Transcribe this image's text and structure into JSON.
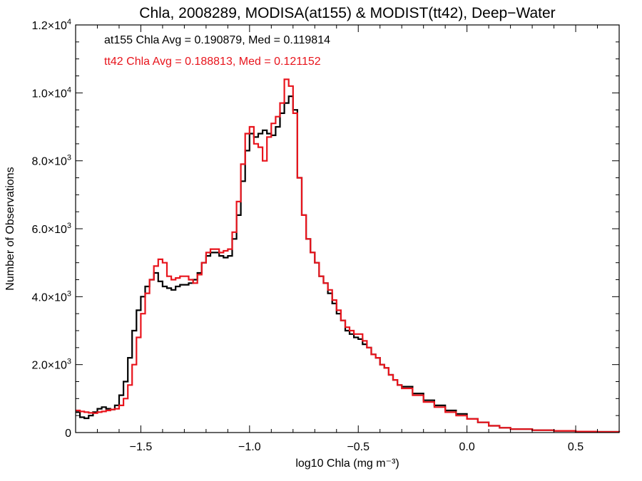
{
  "chart_data": {
    "type": "line",
    "title": "Chla, 2008289, MODISA(at155) & MODIST(tt42), Deep−Water",
    "xlabel": "log10 Chla (mg m⁻³)",
    "ylabel": "Number of Observations",
    "xlim": [
      -1.8,
      0.7
    ],
    "ylim": [
      0,
      12000
    ],
    "x_ticks": [
      {
        "value": -1.5,
        "label": "−1.5"
      },
      {
        "value": -1.0,
        "label": "−1.0"
      },
      {
        "value": -0.5,
        "label": "−0.5"
      },
      {
        "value": 0.0,
        "label": "0.0"
      },
      {
        "value": 0.5,
        "label": "0.5"
      }
    ],
    "y_ticks": [
      {
        "value": 0,
        "mantissa": "0",
        "exponent": ""
      },
      {
        "value": 2000,
        "mantissa": "2.0×10",
        "exponent": "3"
      },
      {
        "value": 4000,
        "mantissa": "4.0×10",
        "exponent": "3"
      },
      {
        "value": 6000,
        "mantissa": "6.0×10",
        "exponent": "3"
      },
      {
        "value": 8000,
        "mantissa": "8.0×10",
        "exponent": "3"
      },
      {
        "value": 10000,
        "mantissa": "1.0×10",
        "exponent": "4"
      },
      {
        "value": 12000,
        "mantissa": "1.2×10",
        "exponent": "4"
      }
    ],
    "annotations": [
      {
        "text": "at155 Chla Avg = 0.190879, Med = 0.119814",
        "color": "#000000"
      },
      {
        "text": "tt42 Chla Avg = 0.188813, Med = 0.121152",
        "color": "#e8141c"
      }
    ],
    "grid": false,
    "series": [
      {
        "color": "#000000",
        "x": [
          -1.8,
          -1.78,
          -1.76,
          -1.74,
          -1.72,
          -1.7,
          -1.68,
          -1.66,
          -1.64,
          -1.62,
          -1.6,
          -1.58,
          -1.56,
          -1.54,
          -1.52,
          -1.5,
          -1.48,
          -1.46,
          -1.44,
          -1.42,
          -1.4,
          -1.38,
          -1.36,
          -1.34,
          -1.32,
          -1.3,
          -1.28,
          -1.26,
          -1.24,
          -1.22,
          -1.2,
          -1.18,
          -1.16,
          -1.14,
          -1.12,
          -1.1,
          -1.08,
          -1.06,
          -1.04,
          -1.02,
          -1.0,
          -0.98,
          -0.96,
          -0.94,
          -0.92,
          -0.9,
          -0.88,
          -0.86,
          -0.84,
          -0.82,
          -0.8,
          -0.78,
          -0.76,
          -0.74,
          -0.72,
          -0.7,
          -0.68,
          -0.66,
          -0.64,
          -0.62,
          -0.6,
          -0.58,
          -0.56,
          -0.54,
          -0.52,
          -0.5,
          -0.48,
          -0.46,
          -0.44,
          -0.42,
          -0.4,
          -0.38,
          -0.36,
          -0.34,
          -0.32,
          -0.3,
          -0.25,
          -0.2,
          -0.15,
          -0.1,
          -0.05,
          0.0,
          0.05,
          0.1,
          0.15,
          0.2,
          0.3,
          0.4,
          0.5,
          0.6,
          0.7
        ],
        "y": [
          600,
          450,
          420,
          500,
          600,
          700,
          750,
          700,
          680,
          800,
          1100,
          1500,
          2200,
          3000,
          3600,
          4000,
          4300,
          4500,
          4700,
          4450,
          4300,
          4250,
          4200,
          4300,
          4350,
          4350,
          4400,
          4500,
          4700,
          5000,
          5200,
          5300,
          5300,
          5200,
          5150,
          5200,
          5700,
          6400,
          7400,
          8300,
          8800,
          8700,
          8800,
          8900,
          8800,
          8750,
          9000,
          9400,
          9700,
          9900,
          9500,
          7500,
          6400,
          5700,
          5300,
          5000,
          4600,
          4400,
          4100,
          3800,
          3500,
          3300,
          3000,
          2900,
          2800,
          2750,
          2600,
          2500,
          2300,
          2200,
          2000,
          1900,
          1700,
          1550,
          1400,
          1350,
          1150,
          950,
          800,
          650,
          550,
          400,
          300,
          200,
          140,
          100,
          70,
          50,
          30,
          20,
          10
        ]
      },
      {
        "color": "#e8141c",
        "x": [
          -1.8,
          -1.78,
          -1.76,
          -1.74,
          -1.72,
          -1.7,
          -1.68,
          -1.66,
          -1.64,
          -1.62,
          -1.6,
          -1.58,
          -1.56,
          -1.54,
          -1.52,
          -1.5,
          -1.48,
          -1.46,
          -1.44,
          -1.42,
          -1.4,
          -1.38,
          -1.36,
          -1.34,
          -1.32,
          -1.3,
          -1.28,
          -1.26,
          -1.24,
          -1.22,
          -1.2,
          -1.18,
          -1.16,
          -1.14,
          -1.12,
          -1.1,
          -1.08,
          -1.06,
          -1.04,
          -1.02,
          -1.0,
          -0.98,
          -0.96,
          -0.94,
          -0.92,
          -0.9,
          -0.88,
          -0.86,
          -0.84,
          -0.82,
          -0.8,
          -0.78,
          -0.76,
          -0.74,
          -0.72,
          -0.7,
          -0.68,
          -0.66,
          -0.64,
          -0.62,
          -0.6,
          -0.58,
          -0.56,
          -0.54,
          -0.52,
          -0.5,
          -0.48,
          -0.46,
          -0.44,
          -0.42,
          -0.4,
          -0.38,
          -0.36,
          -0.34,
          -0.32,
          -0.3,
          -0.25,
          -0.2,
          -0.15,
          -0.1,
          -0.05,
          0.0,
          0.05,
          0.1,
          0.15,
          0.2,
          0.3,
          0.4,
          0.5,
          0.6,
          0.7
        ],
        "y": [
          650,
          620,
          600,
          580,
          570,
          600,
          620,
          650,
          680,
          700,
          800,
          1000,
          1400,
          2000,
          2800,
          3500,
          4100,
          4500,
          4900,
          5100,
          5000,
          4600,
          4500,
          4550,
          4600,
          4600,
          4500,
          4400,
          4650,
          5000,
          5300,
          5400,
          5400,
          5300,
          5350,
          5400,
          5900,
          6800,
          7900,
          8800,
          9000,
          8500,
          8400,
          8000,
          8700,
          9100,
          9300,
          9700,
          10400,
          10200,
          9400,
          7500,
          6400,
          5700,
          5300,
          5000,
          4600,
          4400,
          4200,
          3900,
          3600,
          3300,
          3100,
          3000,
          2900,
          2900,
          2700,
          2500,
          2300,
          2200,
          2000,
          1900,
          1700,
          1550,
          1400,
          1300,
          1100,
          900,
          750,
          600,
          500,
          400,
          300,
          200,
          140,
          100,
          70,
          50,
          30,
          20,
          10
        ]
      }
    ]
  }
}
